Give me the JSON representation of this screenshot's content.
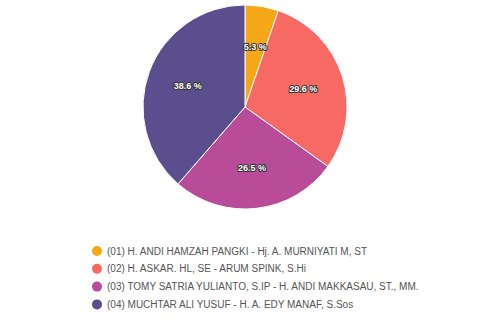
{
  "chart_data": {
    "type": "pie",
    "categories": [
      "(01) H. ANDI HAMZAH PANGKI - Hj. A. MURNIYATI M, ST",
      "(02) H. ASKAR. HL, SE - ARUM SPINK, S.Hi",
      "(03) TOMY SATRIA YULIANTO, S.IP - H. ANDI MAKKASAU, ST., MM.",
      "(04) MUCHTAR ALI YUSUF - H. A. EDY MANAF, S.Sos"
    ],
    "values": [
      5.3,
      29.6,
      26.5,
      38.6
    ],
    "value_labels": [
      "5.3 %",
      "29.6 %",
      "26.5 %",
      "38.6 %"
    ],
    "colors": [
      "#f5a718",
      "#f76a63",
      "#b84c99",
      "#5b4e8e"
    ],
    "data_labels": true,
    "legend": "bottom"
  }
}
